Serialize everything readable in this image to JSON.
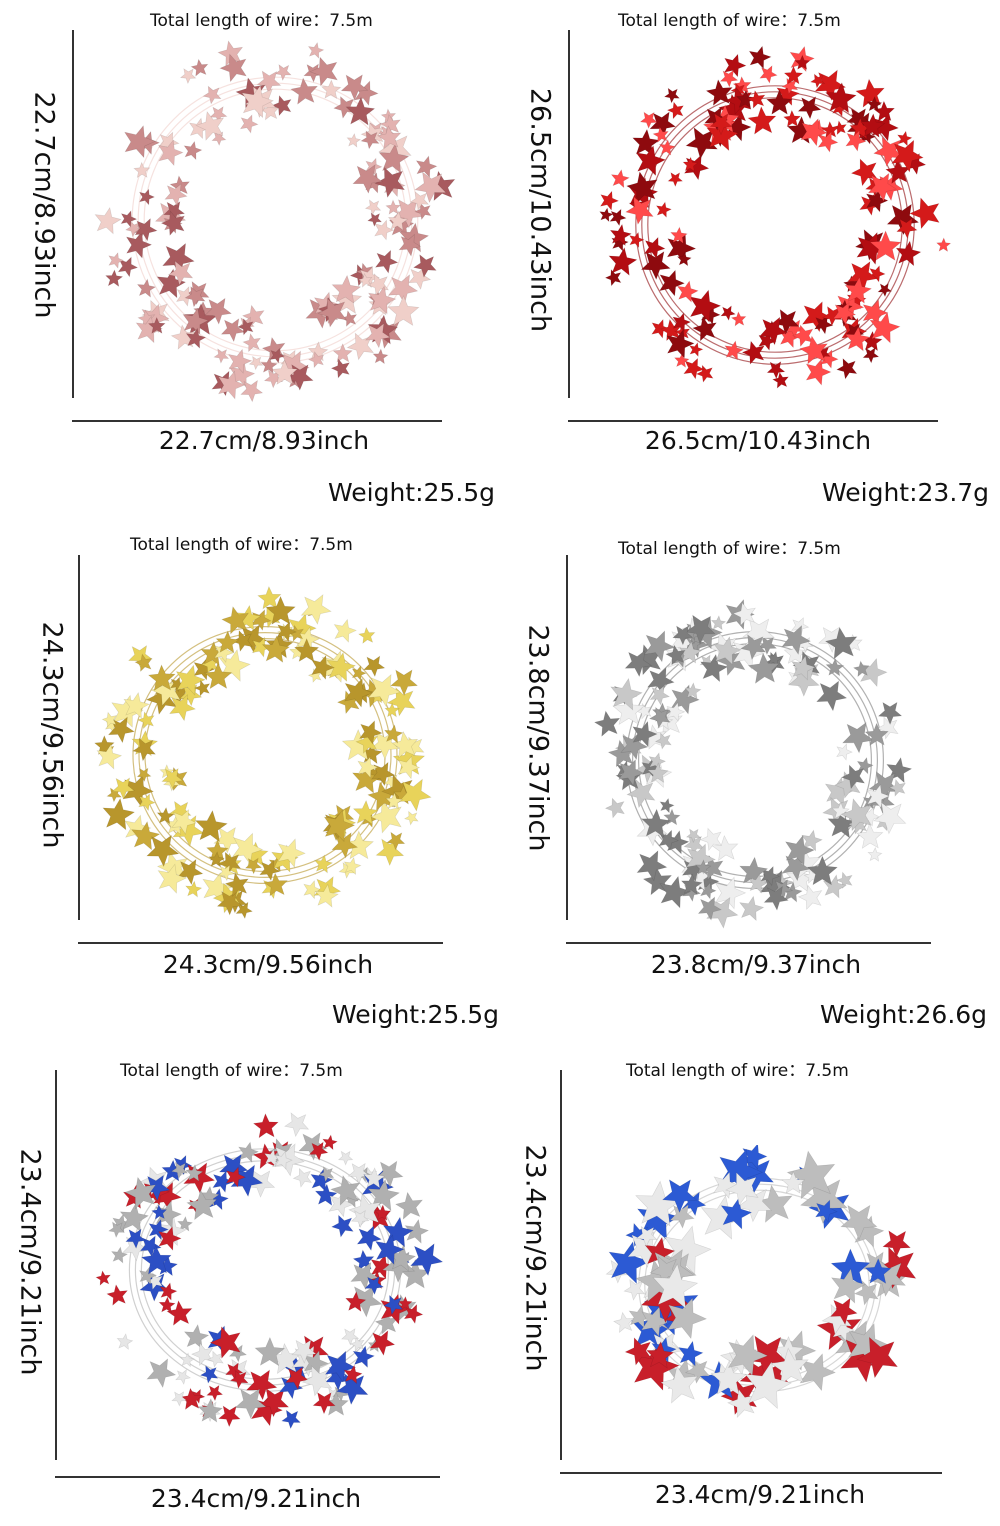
{
  "products": [
    {
      "wire_label": "Total length of wire：7.5m",
      "height_label": "22.7cm/8.93inch",
      "width_label": "22.7cm/8.93inch",
      "weight": "Weight:25.5g",
      "colors": [
        "#c98a8a",
        "#e3b2b0",
        "#a85a5e",
        "#f0cfc9"
      ]
    },
    {
      "wire_label": "Total length of wire：7.5m",
      "height_label": "26.5cm/10.43inch",
      "width_label": "26.5cm/10.43inch",
      "weight": "Weight:23.7g",
      "colors": [
        "#d41a1a",
        "#b30d12",
        "#ff4a4a",
        "#8e0a0e"
      ]
    },
    {
      "wire_label": "Total length of wire：7.5m",
      "height_label": "24.3cm/9.56inch",
      "width_label": "24.3cm/9.56inch",
      "weight": "Weight:25.5g",
      "colors": [
        "#e8d35a",
        "#c9a93a",
        "#f6ea9a",
        "#b8962c"
      ]
    },
    {
      "wire_label": "Total length of wire：7.5m",
      "height_label": "23.8cm/9.37inch",
      "width_label": "23.8cm/9.37inch",
      "weight": "Weight:26.6g",
      "colors": [
        "#c8c8c8",
        "#9a9a9a",
        "#eeeeee",
        "#7d7d7d"
      ]
    },
    {
      "wire_label": "Total length of wire：7.5m",
      "height_label": "23.4cm/9.21inch",
      "width_label": "23.4cm/9.21inch",
      "weight": "",
      "colors": [
        "#c81f2a",
        "#2c4fc4",
        "#e6e6e6",
        "#b0b0b0"
      ]
    },
    {
      "wire_label": "Total length of wire：7.5m",
      "height_label": "23.4cm/9.21inch",
      "width_label": "23.4cm/9.21inch",
      "weight": "",
      "colors": [
        "#c81f2a",
        "#2c5ad4",
        "#e9e9e9",
        "#bdbdbd"
      ]
    }
  ]
}
